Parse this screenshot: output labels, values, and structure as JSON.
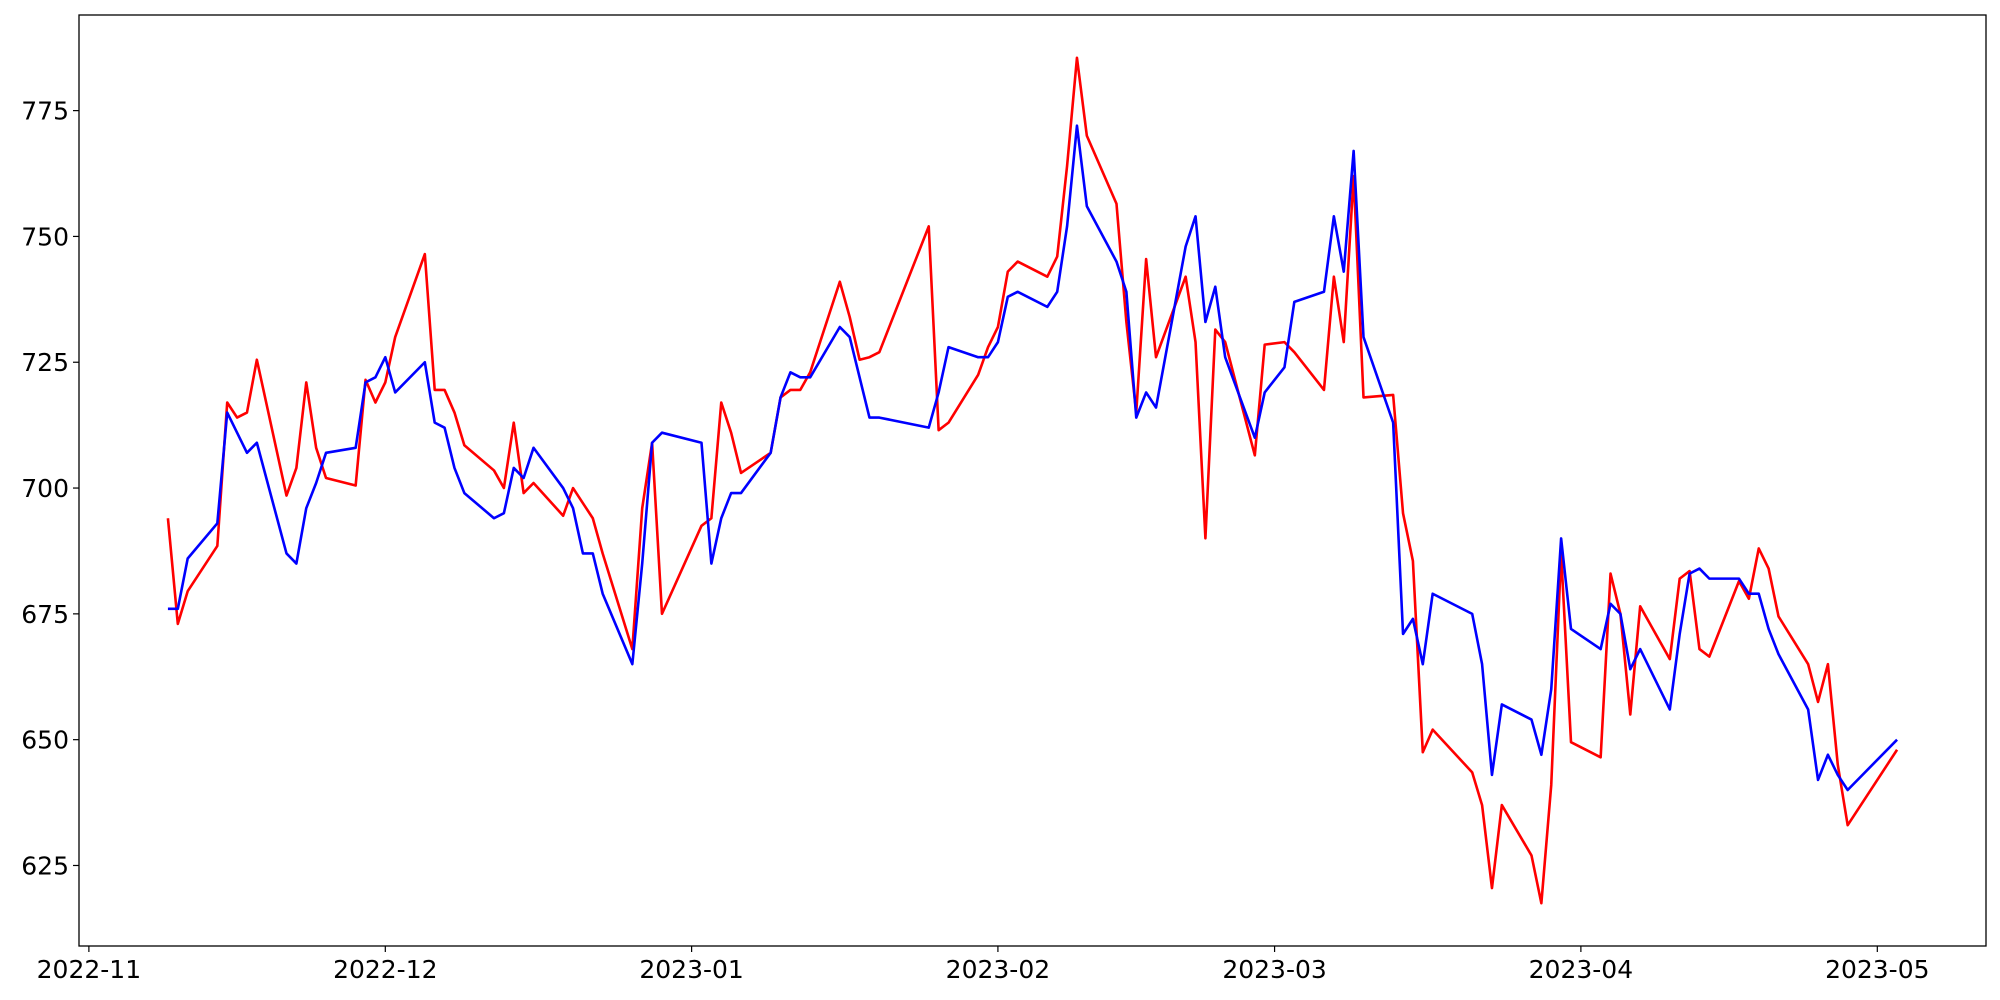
{
  "chart_data": {
    "type": "line",
    "x": [
      "2022-11-09",
      "2022-11-10",
      "2022-11-11",
      "2022-11-14",
      "2022-11-15",
      "2022-11-16",
      "2022-11-17",
      "2022-11-18",
      "2022-11-21",
      "2022-11-22",
      "2022-11-23",
      "2022-11-24",
      "2022-11-25",
      "2022-11-28",
      "2022-11-29",
      "2022-11-30",
      "2022-12-01",
      "2022-12-02",
      "2022-12-05",
      "2022-12-06",
      "2022-12-07",
      "2022-12-08",
      "2022-12-09",
      "2022-12-12",
      "2022-12-13",
      "2022-12-14",
      "2022-12-15",
      "2022-12-16",
      "2022-12-19",
      "2022-12-20",
      "2022-12-21",
      "2022-12-22",
      "2022-12-23",
      "2022-12-26",
      "2022-12-27",
      "2022-12-28",
      "2022-12-29",
      "2023-01-02",
      "2023-01-03",
      "2023-01-04",
      "2023-01-05",
      "2023-01-06",
      "2023-01-09",
      "2023-01-10",
      "2023-01-11",
      "2023-01-12",
      "2023-01-13",
      "2023-01-16",
      "2023-01-17",
      "2023-01-18",
      "2023-01-19",
      "2023-01-20",
      "2023-01-25",
      "2023-01-26",
      "2023-01-27",
      "2023-01-30",
      "2023-01-31",
      "2023-02-01",
      "2023-02-02",
      "2023-02-03",
      "2023-02-06",
      "2023-02-07",
      "2023-02-08",
      "2023-02-09",
      "2023-02-10",
      "2023-02-13",
      "2023-02-14",
      "2023-02-15",
      "2023-02-16",
      "2023-02-17",
      "2023-02-20",
      "2023-02-21",
      "2023-02-22",
      "2023-02-23",
      "2023-02-24",
      "2023-02-27",
      "2023-02-28",
      "2023-03-02",
      "2023-03-03",
      "2023-03-06",
      "2023-03-07",
      "2023-03-08",
      "2023-03-09",
      "2023-03-10",
      "2023-03-13",
      "2023-03-14",
      "2023-03-15",
      "2023-03-16",
      "2023-03-17",
      "2023-03-21",
      "2023-03-22",
      "2023-03-23",
      "2023-03-24",
      "2023-03-27",
      "2023-03-28",
      "2023-03-29",
      "2023-03-30",
      "2023-03-31",
      "2023-04-03",
      "2023-04-04",
      "2023-04-05",
      "2023-04-06",
      "2023-04-07",
      "2023-04-10",
      "2023-04-11",
      "2023-04-12",
      "2023-04-13",
      "2023-04-14",
      "2023-04-17",
      "2023-04-18",
      "2023-04-19",
      "2023-04-20",
      "2023-04-21",
      "2023-04-24",
      "2023-04-25",
      "2023-04-26",
      "2023-04-27",
      "2023-04-28",
      "2023-05-03"
    ],
    "series": [
      {
        "color": "#ff0000",
        "values": [
          694,
          673,
          679.5,
          688.5,
          717,
          714,
          715,
          725.5,
          698.5,
          704,
          721,
          708,
          702,
          700.5,
          721.5,
          717,
          721,
          730,
          746.5,
          719.5,
          719.5,
          715,
          708.5,
          703.5,
          700,
          713,
          699,
          701,
          694.5,
          700,
          697,
          694,
          687,
          668,
          696,
          709,
          675,
          692.5,
          694,
          717,
          711,
          703,
          707,
          718,
          719.5,
          719.5,
          723,
          741,
          734,
          725.5,
          726,
          727,
          752,
          711.5,
          713,
          722.5,
          728,
          732,
          743,
          745,
          742,
          746,
          764,
          785.5,
          770,
          756.5,
          733,
          715,
          745.5,
          726,
          742,
          729,
          690,
          731.5,
          729,
          706.5,
          728.5,
          729,
          727,
          719.5,
          742,
          729,
          762,
          718,
          718.5,
          695,
          685.5,
          647.5,
          652,
          643.5,
          637,
          620.5,
          637,
          627,
          617.5,
          641,
          687,
          649.5,
          646.5,
          683,
          675,
          655,
          676.5,
          666,
          682,
          683.5,
          668,
          666.5,
          681.5,
          678,
          688,
          684,
          674.5,
          665,
          657.5,
          665,
          645,
          633,
          648
        ]
      },
      {
        "color": "#0000ff",
        "values": [
          676,
          676,
          686,
          693,
          715,
          711,
          707,
          709,
          687,
          685,
          696,
          701,
          707,
          708,
          721,
          722,
          726,
          719,
          725,
          713,
          712,
          704,
          699,
          694,
          695,
          704,
          702,
          708,
          700,
          696,
          687,
          687,
          679,
          665,
          685,
          709,
          711,
          709,
          685,
          694,
          699,
          699,
          707,
          718,
          723,
          722,
          722,
          732,
          730,
          722,
          714,
          714,
          712,
          719,
          728,
          726,
          726,
          729,
          738,
          739,
          736,
          739,
          752,
          772,
          756,
          745,
          739,
          714,
          719,
          716,
          748,
          754,
          733,
          740,
          726,
          710,
          719,
          724,
          737,
          739,
          754,
          743,
          767,
          730,
          713,
          671,
          674,
          665,
          679,
          675,
          665,
          643,
          657,
          654,
          647,
          660,
          690,
          672,
          668,
          677,
          675,
          664,
          668,
          656,
          671,
          683,
          684,
          682,
          682,
          679,
          679,
          672,
          667,
          656,
          642,
          647,
          643,
          640,
          650
        ]
      }
    ],
    "xlim": [
      "2022-10-31",
      "2023-05-12"
    ],
    "xticks": [
      "2022-11",
      "2022-12",
      "2023-01",
      "2023-02",
      "2023-03",
      "2023-04",
      "2023-05"
    ],
    "ylim": [
      609,
      794
    ],
    "yticks": [
      625,
      650,
      675,
      700,
      725,
      750,
      775
    ],
    "grid": false
  }
}
